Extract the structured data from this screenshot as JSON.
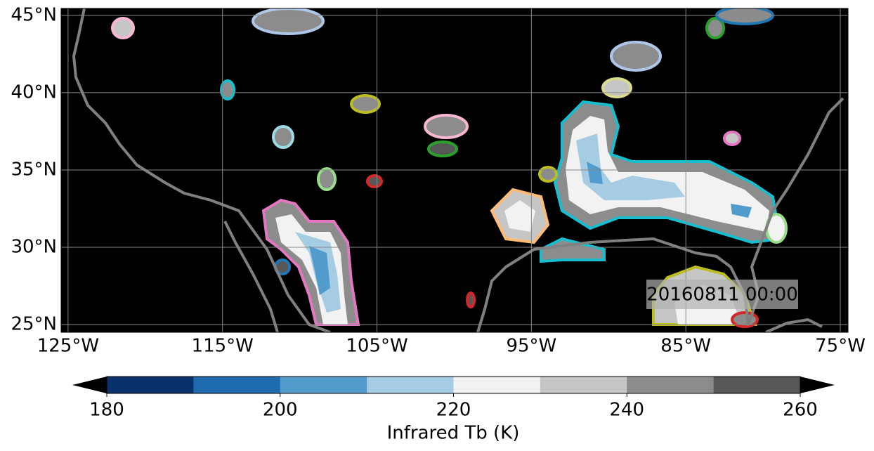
{
  "map": {
    "xlim": [
      -125.45,
      -74.5
    ],
    "ylim": [
      24.5,
      45.45
    ],
    "xticks": [
      {
        "value": -125,
        "label": "125°W"
      },
      {
        "value": -115,
        "label": "115°W"
      },
      {
        "value": -105,
        "label": "105°W"
      },
      {
        "value": -95,
        "label": "95°W"
      },
      {
        "value": -85,
        "label": "85°W"
      },
      {
        "value": -75,
        "label": "75°W"
      }
    ],
    "yticks": [
      {
        "value": 25,
        "label": "25°N"
      },
      {
        "value": 30,
        "label": "30°N"
      },
      {
        "value": 35,
        "label": "35°N"
      },
      {
        "value": 40,
        "label": "40°N"
      },
      {
        "value": 45,
        "label": "45°N"
      }
    ],
    "grid": true,
    "background": "#000000",
    "timestamp": "20160811 00:00"
  },
  "colorbar": {
    "range": [
      180,
      260
    ],
    "ticks": [
      180,
      200,
      220,
      240,
      260
    ],
    "colors": [
      "#08306b",
      "#1f6bb0",
      "#519ccd",
      "#a6cce3",
      "#f2f2f2",
      "#c6c6c6",
      "#8c8c8c",
      "#575757"
    ],
    "under": "#000000",
    "over": "#000000",
    "label": "Infrared Tb (K)"
  }
}
